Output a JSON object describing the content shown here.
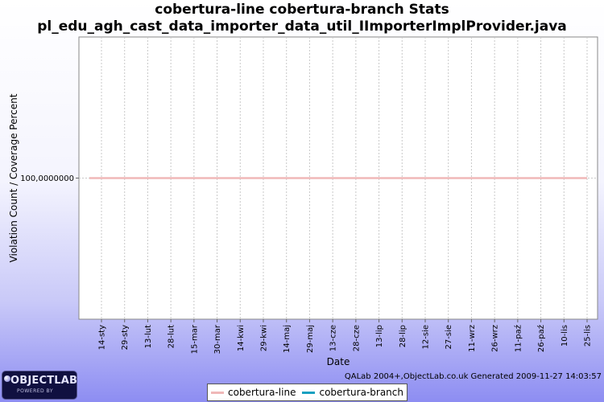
{
  "chart_data": {
    "type": "line",
    "title_line1": "cobertura-line cobertura-branch  Stats",
    "title_line2": "pl_edu_agh_cast_data_importer_data_util_IImporterImplProvider.java",
    "xlabel": "Date",
    "ylabel": "Violation Count / Coverage Percent",
    "y_tick_labels": [
      "100,0000000"
    ],
    "y_ticks": [
      100
    ],
    "ylim": [
      99,
      101
    ],
    "x": [
      "14-sty",
      "29-sty",
      "13-lut",
      "28-lut",
      "15-mar",
      "30-mar",
      "14-kwi",
      "29-kwi",
      "14-maj",
      "29-maj",
      "13-cze",
      "28-cze",
      "13-lip",
      "28-lip",
      "12-sie",
      "27-sie",
      "11-wrz",
      "26-wrz",
      "11-paź",
      "26-paź",
      "10-lis",
      "25-lis"
    ],
    "series": [
      {
        "name": "cobertura-line",
        "color": "#f0b8b8",
        "values": [
          100,
          100,
          100,
          100,
          100,
          100,
          100,
          100,
          100,
          100,
          100,
          100,
          100,
          100,
          100,
          100,
          100,
          100,
          100,
          100,
          100,
          100
        ]
      },
      {
        "name": "cobertura-branch",
        "color": "#1aa0c0",
        "values": [
          100,
          100,
          100,
          100,
          100,
          100,
          100,
          100,
          100,
          100,
          100,
          100,
          100,
          100,
          100,
          100,
          100,
          100,
          100,
          100,
          100,
          100
        ]
      }
    ],
    "grid": true,
    "legend_position": "bottom"
  },
  "footer": "QALab 2004+,ObjectLab.co.uk Generated 2009-11-27 14:03:57",
  "logo": {
    "text": "OBJECTLAB",
    "subtext": "POWERED BY"
  },
  "colors": {
    "plot_background": "#ffffff",
    "grid": "#c8c8c8",
    "background_gradient_bottom": "#8d8df2"
  }
}
